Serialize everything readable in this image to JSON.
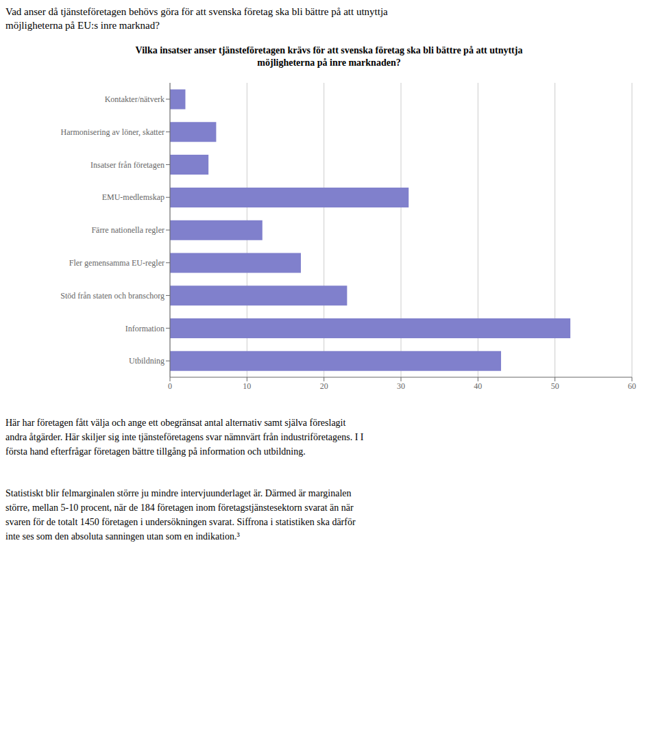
{
  "chart_data": {
    "type": "bar",
    "orientation": "horizontal",
    "subtitle": "Vad anser då tjänsteföretagen behövs göra för att svenska företag ska bli bättre på att utnyttja\nmöjligheterna på EU:s inre marknad?",
    "title": "Vilka insatser anser tjänsteföretagen krävs för att svenska företag ska bli bättre på att utnyttja\nmöjligheterna på inre marknaden?",
    "categories": [
      "Kontakter/nätverk",
      "Harmonisering av löner, skatter",
      "Insatser från företagen",
      "EMU-medlemskap",
      "Färre nationella regler",
      "Fler gemensamma EU-regler",
      "Stöd från staten och branschorg",
      "Information",
      "Utbildning"
    ],
    "values": [
      2,
      6,
      5,
      31,
      12,
      17,
      23,
      52,
      43
    ],
    "color": "#8080cc",
    "xlim": [
      0,
      60
    ],
    "xticks": [
      0,
      10,
      20,
      30,
      40,
      50,
      60
    ],
    "grid": true,
    "annotations": [
      "Här har företagen fått välja och ange ett obegränsat antal alternativ samt själva föreslagit\nandra åtgärder. Här skiljer sig inte tjänsteföretagens svar nämnvärt från industriföretagens. I I\nförsta hand efterfrågar företagen bättre tillgång på information och utbildning.",
      "Statistiskt blir felmarginalen större ju mindre intervjuunderlaget är. Därmed är marginalen\nstörre, mellan 5-10 procent, när de 184 företagen inom företagstjänstesektorn svarat än när\nsvaren för de totalt 1450 företagen i undersökningen svarat. Siffrona i statistiken ska därför\ninte ses som den absoluta sanningen utan som en indikation.³"
    ]
  }
}
